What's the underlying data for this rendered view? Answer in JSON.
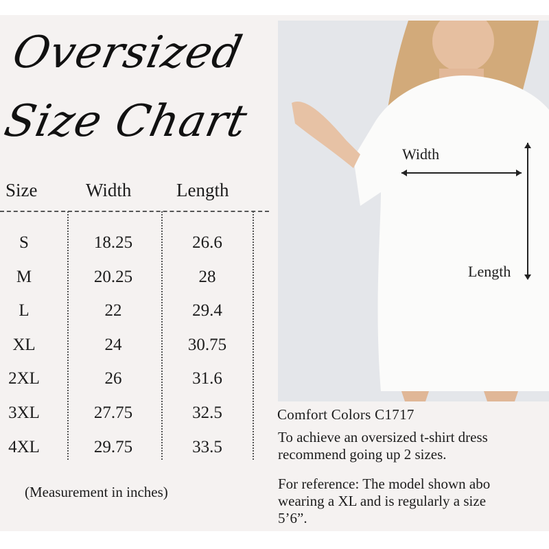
{
  "title": {
    "line1": "Oversized",
    "line2": "Size Chart"
  },
  "table": {
    "headers": [
      "Size",
      "Width",
      "Length"
    ],
    "rows": [
      [
        "S",
        "18.25",
        "26.6"
      ],
      [
        "M",
        "20.25",
        "28"
      ],
      [
        "L",
        "22",
        "29.4"
      ],
      [
        "XL",
        "24",
        "30.75"
      ],
      [
        "2XL",
        "26",
        "31.6"
      ],
      [
        "3XL",
        "27.75",
        "32.5"
      ],
      [
        "4XL",
        "29.75",
        "33.5"
      ]
    ]
  },
  "note": "(Measurement in inches)",
  "photo": {
    "width_label": "Width",
    "length_label": "Length"
  },
  "info": {
    "brand": "Comfort Colors C1717",
    "para1": [
      "To achieve an oversized t-shirt dress",
      "recommend going up 2 sizes."
    ],
    "para2": [
      "For reference: The model shown abo",
      "wearing a XL and is regularly a size",
      "5’6”."
    ]
  },
  "colors": {
    "background": "#f5f2f1",
    "text": "#1c1c1c"
  }
}
